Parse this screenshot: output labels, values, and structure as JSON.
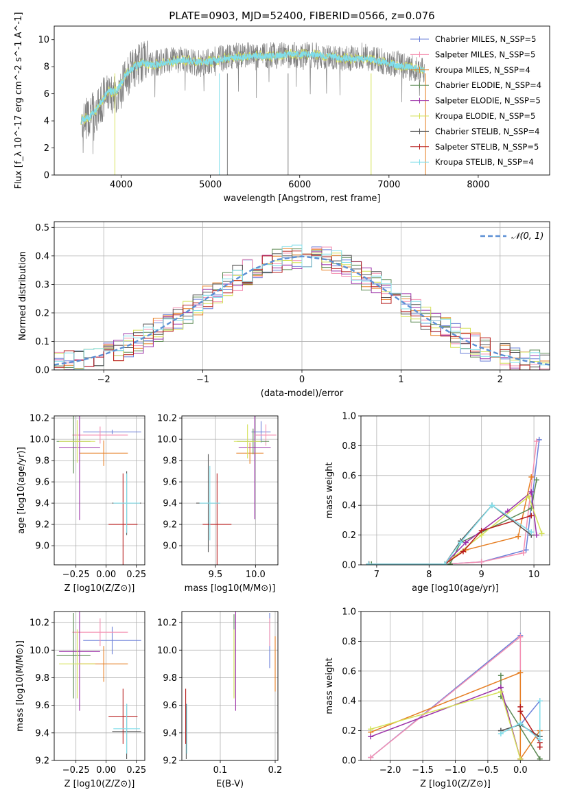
{
  "figure_title": "PLATE=0903, MJD=52400, FIBERID=0566, z=0.076",
  "model_colors": [
    "#6a7fd8",
    "#f48fb1",
    "#e67e22",
    "#5d8a55",
    "#9b30a8",
    "#d4e157",
    "#555555",
    "#b71c1c",
    "#80deea"
  ],
  "chart_data": [
    {
      "type": "line",
      "title": "PLATE=0903, MJD=52400, FIBERID=0566, z=0.076",
      "xlabel": "wavelength [Angstrom, rest frame]",
      "ylabel": "Flux [f_λ 10^-17 erg cm^-2 s^-1 A^-1]",
      "xlim": [
        3250,
        8800
      ],
      "ylim": [
        0,
        11
      ],
      "xticks": [
        "4000",
        "5000",
        "6000",
        "7000",
        "8000"
      ],
      "yticks": [
        "0",
        "2",
        "4",
        "6",
        "8",
        "10"
      ],
      "grid": false,
      "legend_position": "top-right",
      "legend": [
        "Chabrier MILES, N_SSP=5",
        "Salpeter MILES, N_SSP=5",
        "Kroupa MILES, N_SSP=4",
        "Chabrier ELODIE, N_SSP=4",
        "Salpeter ELODIE, N_SSP=5",
        "Kroupa ELODIE, N_SSP=5",
        "Chabrier STELIB, N_SSP=4",
        "Salpeter STELIB, N_SSP=5",
        "Kroupa STELIB, N_SSP=4"
      ],
      "series": [
        {
          "name": "data",
          "color": "#808080",
          "x": [
            3550,
            3650,
            3750,
            3850,
            3950,
            4050,
            4150,
            4250,
            4350,
            4500,
            4700,
            4900,
            5100,
            5300,
            5500,
            5700,
            5900,
            6100,
            6300,
            6500,
            6700,
            6900,
            7100,
            7300,
            7400
          ],
          "y": [
            3.9,
            4.4,
            4.9,
            6.3,
            5.8,
            7.1,
            8.0,
            8.5,
            8.2,
            8.4,
            8.5,
            8.2,
            8.6,
            8.8,
            8.9,
            8.8,
            8.9,
            8.9,
            8.7,
            8.6,
            8.8,
            8.4,
            8.2,
            7.8,
            7.8
          ]
        },
        {
          "name": "model",
          "color": "#80deea",
          "x": [
            3550,
            3650,
            3750,
            3850,
            3950,
            4050,
            4150,
            4250,
            4350,
            4500,
            4700,
            4900,
            5100,
            5300,
            5500,
            5700,
            5900,
            6100,
            6300,
            6500,
            6700,
            6900,
            7100,
            7300,
            7400
          ],
          "y": [
            4.0,
            4.3,
            5.1,
            6.2,
            6.2,
            7.4,
            8.0,
            8.3,
            8.1,
            8.3,
            8.5,
            8.3,
            8.5,
            8.7,
            8.8,
            8.8,
            8.9,
            8.9,
            8.8,
            8.6,
            8.6,
            8.4,
            8.1,
            7.9,
            7.7
          ]
        }
      ]
    },
    {
      "type": "line",
      "xlabel": "(data-model)/error",
      "ylabel": "Normed distribution",
      "xlim": [
        -2.5,
        2.5
      ],
      "ylim": [
        0,
        0.52
      ],
      "xticks": [
        "−2",
        "−1",
        "0",
        "1",
        "2"
      ],
      "yticks": [
        "0.0",
        "0.1",
        "0.2",
        "0.3",
        "0.4",
        "0.5"
      ],
      "grid": true,
      "legend_position": "top-right",
      "legend": [
        "𝒩(0, 1)"
      ],
      "bin_width": 0.1,
      "series": [
        {
          "name": "N(0,1)",
          "color": "#5b8fd4",
          "x": [
            -2.5,
            -2.25,
            -2.0,
            -1.75,
            -1.5,
            -1.25,
            -1.0,
            -0.75,
            -0.5,
            -0.25,
            0,
            0.25,
            0.5,
            0.75,
            1.0,
            1.25,
            1.5,
            1.75,
            2.0,
            2.25,
            2.5
          ],
          "y": [
            0.018,
            0.032,
            0.054,
            0.086,
            0.13,
            0.183,
            0.242,
            0.301,
            0.352,
            0.387,
            0.399,
            0.387,
            0.352,
            0.301,
            0.242,
            0.183,
            0.13,
            0.086,
            0.054,
            0.032,
            0.018
          ]
        }
      ]
    },
    {
      "type": "scatter",
      "xlabel": "Z [log10(Z/Z⊙)]",
      "ylabel": "age [log10(age/yr)]",
      "xlim": [
        -0.43,
        0.32
      ],
      "ylim": [
        8.82,
        10.22
      ],
      "xticks": [
        "−0.25",
        "0.00",
        "0.25"
      ],
      "yticks": [
        "9.0",
        "9.2",
        "9.4",
        "9.6",
        "9.8",
        "10.0",
        "10.2"
      ],
      "grid": true,
      "points": [
        {
          "x": 0.05,
          "y": 10.07,
          "xerr": 0.24,
          "yerr": 0.02,
          "color": "#6a7fd8"
        },
        {
          "x": -0.05,
          "y": 10.04,
          "xerr": 0.23,
          "yerr": 0.08,
          "color": "#f48fb1"
        },
        {
          "x": -0.02,
          "y": 9.87,
          "xerr": 0.2,
          "yerr": 0.12,
          "color": "#e67e22"
        },
        {
          "x": -0.27,
          "y": 9.98,
          "xerr": 0.14,
          "yerr": 0.3,
          "color": "#5d8a55"
        },
        {
          "x": -0.22,
          "y": 9.92,
          "xerr": 0.17,
          "yerr": 0.68,
          "color": "#9b30a8"
        },
        {
          "x": -0.24,
          "y": 9.98,
          "xerr": 0.15,
          "yerr": 0.2,
          "color": "#d4e157"
        },
        {
          "x": 0.17,
          "y": 9.4,
          "xerr": 0.12,
          "yerr": 0.3,
          "color": "#555555"
        },
        {
          "x": 0.14,
          "y": 9.2,
          "xerr": 0.12,
          "yerr": 0.48,
          "color": "#b71c1c"
        },
        {
          "x": 0.17,
          "y": 9.4,
          "xerr": 0.11,
          "yerr": 0.28,
          "color": "#80deea"
        }
      ]
    },
    {
      "type": "scatter",
      "xlabel": "mass [log10(M/M⊙)]",
      "xlim": [
        9.08,
        10.28
      ],
      "ylim": [
        8.82,
        10.22
      ],
      "xticks": [
        "9.5",
        "10.0"
      ],
      "yticks": [
        "9.0",
        "9.2",
        "9.4",
        "9.6",
        "9.8",
        "10.0",
        "10.2"
      ],
      "grid": true,
      "points": [
        {
          "x": 10.07,
          "y": 10.07,
          "xerr": 0.12,
          "yerr": 0.1,
          "color": "#6a7fd8"
        },
        {
          "x": 10.13,
          "y": 10.04,
          "xerr": 0.13,
          "yerr": 0.1,
          "color": "#f48fb1"
        },
        {
          "x": 9.93,
          "y": 9.87,
          "xerr": 0.17,
          "yerr": 0.1,
          "color": "#e67e22"
        },
        {
          "x": 9.97,
          "y": 9.98,
          "xerr": 0.2,
          "yerr": 0.12,
          "color": "#5d8a55"
        },
        {
          "x": 9.99,
          "y": 9.92,
          "xerr": 0.2,
          "yerr": 0.67,
          "color": "#9b30a8"
        },
        {
          "x": 9.9,
          "y": 9.98,
          "xerr": 0.17,
          "yerr": 0.16,
          "color": "#d4e157"
        },
        {
          "x": 9.41,
          "y": 9.4,
          "xerr": 0.15,
          "yerr": 0.46,
          "color": "#555555"
        },
        {
          "x": 9.52,
          "y": 9.2,
          "xerr": 0.18,
          "yerr": 0.48,
          "color": "#b71c1c"
        },
        {
          "x": 9.43,
          "y": 9.4,
          "xerr": 0.13,
          "yerr": 0.35,
          "color": "#80deea"
        }
      ]
    },
    {
      "type": "line",
      "xlabel": "age [log10(age/yr)]",
      "ylabel": "mass weight",
      "xlim": [
        6.7,
        10.3
      ],
      "ylim": [
        0,
        1.0
      ],
      "xticks": [
        "7",
        "8",
        "9",
        "10"
      ],
      "yticks": [
        "0.0",
        "0.2",
        "0.4",
        "0.6",
        "0.8",
        "1.0"
      ],
      "grid": true,
      "series": [
        {
          "color": "#6a7fd8",
          "x": [
            6.85,
            8.3,
            9.0,
            9.85,
            10.1
          ],
          "y": [
            0.005,
            0.005,
            0.02,
            0.1,
            0.84
          ]
        },
        {
          "color": "#f48fb1",
          "x": [
            6.85,
            8.3,
            9.0,
            9.8,
            10.05
          ],
          "y": [
            0.005,
            0.005,
            0.02,
            0.08,
            0.83
          ]
        },
        {
          "color": "#e67e22",
          "x": [
            6.85,
            8.3,
            8.7,
            9.7,
            9.95
          ],
          "y": [
            0.005,
            0.005,
            0.1,
            0.19,
            0.59
          ]
        },
        {
          "color": "#5d8a55",
          "x": [
            6.9,
            8.4,
            8.6,
            9.95,
            10.05
          ],
          "y": [
            0.005,
            0.005,
            0.15,
            0.38,
            0.57
          ]
        },
        {
          "color": "#9b30a8",
          "x": [
            6.85,
            8.3,
            8.7,
            9.5,
            9.95,
            10.05
          ],
          "y": [
            0.005,
            0.005,
            0.15,
            0.36,
            0.49,
            0.2
          ]
        },
        {
          "color": "#d4e157",
          "x": [
            6.85,
            8.3,
            9.0,
            9.9,
            10.15
          ],
          "y": [
            0.005,
            0.005,
            0.2,
            0.46,
            0.21
          ]
        },
        {
          "color": "#555555",
          "x": [
            6.85,
            8.3,
            8.6,
            9.2,
            9.95
          ],
          "y": [
            0.005,
            0.005,
            0.16,
            0.4,
            0.2
          ]
        },
        {
          "color": "#b71c1c",
          "x": [
            6.85,
            8.3,
            8.65,
            9.0,
            9.95
          ],
          "y": [
            0.005,
            0.005,
            0.09,
            0.23,
            0.33
          ]
        },
        {
          "color": "#80deea",
          "x": [
            6.85,
            8.3,
            8.6,
            9.2,
            9.95
          ],
          "y": [
            0.005,
            0.005,
            0.15,
            0.4,
            0.22
          ]
        }
      ]
    },
    {
      "type": "scatter",
      "xlabel": "Z [log10(Z/Z⊙)]",
      "ylabel": "mass [log10(M/M⊙)]",
      "xlim": [
        -0.43,
        0.32
      ],
      "ylim": [
        9.2,
        10.28
      ],
      "xticks": [
        "−0.25",
        "0.00",
        "0.25"
      ],
      "yticks": [
        "9.2",
        "9.4",
        "9.6",
        "9.8",
        "10.0",
        "10.2"
      ],
      "grid": true,
      "points": [
        {
          "x": 0.05,
          "y": 10.07,
          "xerr": 0.24,
          "yerr": 0.1,
          "color": "#6a7fd8"
        },
        {
          "x": -0.05,
          "y": 10.13,
          "xerr": 0.23,
          "yerr": 0.1,
          "color": "#f48fb1"
        },
        {
          "x": -0.02,
          "y": 9.9,
          "xerr": 0.2,
          "yerr": 0.13,
          "color": "#e67e22"
        },
        {
          "x": -0.27,
          "y": 9.96,
          "xerr": 0.14,
          "yerr": 0.31,
          "color": "#5d8a55"
        },
        {
          "x": -0.22,
          "y": 9.99,
          "xerr": 0.17,
          "yerr": 0.43,
          "color": "#9b30a8"
        },
        {
          "x": -0.24,
          "y": 9.9,
          "xerr": 0.15,
          "yerr": 0.25,
          "color": "#d4e157"
        },
        {
          "x": 0.17,
          "y": 9.41,
          "xerr": 0.12,
          "yerr": 0.2,
          "color": "#555555"
        },
        {
          "x": 0.14,
          "y": 9.52,
          "xerr": 0.12,
          "yerr": 0.2,
          "color": "#b71c1c"
        },
        {
          "x": 0.17,
          "y": 9.43,
          "xerr": 0.11,
          "yerr": 0.18,
          "color": "#80deea"
        }
      ]
    },
    {
      "type": "scatter",
      "xlabel": "E(B-V)",
      "xlim": [
        0.03,
        0.205
      ],
      "ylim": [
        9.2,
        10.28
      ],
      "xticks": [
        "0.1",
        "0.2"
      ],
      "yticks": [
        "9.2",
        "9.4",
        "9.6",
        "9.8",
        "10.0",
        "10.2"
      ],
      "grid": true,
      "points": [
        {
          "x": 0.19,
          "y": 10.07,
          "xerr": 0,
          "yerr": 0.2,
          "color": "#6a7fd8"
        },
        {
          "x": 0.19,
          "y": 10.13,
          "xerr": 0,
          "yerr": 0.1,
          "color": "#f48fb1"
        },
        {
          "x": 0.2,
          "y": 9.9,
          "xerr": 0,
          "yerr": 0.2,
          "color": "#e67e22"
        },
        {
          "x": 0.125,
          "y": 9.96,
          "xerr": 0,
          "yerr": 0.3,
          "color": "#5d8a55"
        },
        {
          "x": 0.128,
          "y": 9.99,
          "xerr": 0,
          "yerr": 0.43,
          "color": "#9b30a8"
        },
        {
          "x": 0.125,
          "y": 9.9,
          "xerr": 0,
          "yerr": 0.25,
          "color": "#d4e157"
        },
        {
          "x": 0.038,
          "y": 9.41,
          "xerr": 0,
          "yerr": 0.2,
          "color": "#555555"
        },
        {
          "x": 0.037,
          "y": 9.52,
          "xerr": 0,
          "yerr": 0.2,
          "color": "#b71c1c"
        },
        {
          "x": 0.039,
          "y": 9.43,
          "xerr": 0,
          "yerr": 0.18,
          "color": "#80deea"
        }
      ]
    },
    {
      "type": "line",
      "xlabel": "Z [log10(Z/Z⊙)]",
      "ylabel": "mass weight",
      "xlim": [
        -2.45,
        0.45
      ],
      "ylim": [
        0,
        1.0
      ],
      "xticks": [
        "−2.0",
        "−1.5",
        "−1.0",
        "−0.5",
        "0.0"
      ],
      "yticks": [
        "0.0",
        "0.2",
        "0.4",
        "0.6",
        "0.8",
        "1.0"
      ],
      "grid": true,
      "series": [
        {
          "color": "#6a7fd8",
          "x": [
            -2.3,
            0.0,
            0.0,
            0.3
          ],
          "y": [
            0.02,
            0.84,
            0.24,
            0.4
          ]
        },
        {
          "color": "#f48fb1",
          "x": [
            -2.3,
            0.0,
            0.0
          ],
          "y": [
            0.02,
            0.83,
            0.01
          ]
        },
        {
          "color": "#e67e22",
          "x": [
            -2.3,
            0.0,
            0.0,
            0.3
          ],
          "y": [
            0.19,
            0.59,
            0.01,
            0.2
          ]
        },
        {
          "color": "#5d8a55",
          "x": [
            -0.3,
            -0.3,
            0.3
          ],
          "y": [
            0.57,
            0.43,
            0.01
          ]
        },
        {
          "color": "#9b30a8",
          "x": [
            -2.3,
            -0.3,
            0.0
          ],
          "y": [
            0.16,
            0.49,
            0.01
          ]
        },
        {
          "color": "#d4e157",
          "x": [
            -2.3,
            -0.3,
            0.0
          ],
          "y": [
            0.21,
            0.46,
            0.01
          ]
        },
        {
          "color": "#555555",
          "x": [
            -0.3,
            0.0,
            0.3
          ],
          "y": [
            0.2,
            0.24,
            0.16
          ]
        },
        {
          "color": "#b71c1c",
          "x": [
            0.0,
            0.0,
            0.3,
            0.3
          ],
          "y": [
            0.36,
            0.33,
            0.12,
            0.09
          ]
        },
        {
          "color": "#80deea",
          "x": [
            -0.3,
            0.0,
            0.3,
            0.3
          ],
          "y": [
            0.18,
            0.25,
            0.14,
            0.4
          ]
        }
      ]
    }
  ]
}
